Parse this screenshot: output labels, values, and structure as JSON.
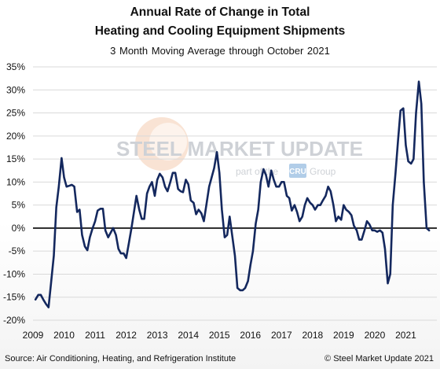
{
  "header": {
    "title_line1": "Annual Rate of Change in Total",
    "title_line2": "Heating and Cooling Equipment Shipments",
    "subtitle": "3 Month Moving Average through October 2021"
  },
  "watermark": {
    "brand_text": "STEEL MARKET UPDATE",
    "tagline_prefix": "part of the",
    "tagline_badge": "CRU",
    "tagline_suffix": "Group"
  },
  "footer": {
    "source": "Source: Air Conditioning, Heating, and Refrigeration Institute",
    "copyright": "© Steel Market Update 2021"
  },
  "colors": {
    "line": "#14285e",
    "zero_line": "#000000",
    "watermark_grey": "#c9cdd2",
    "watermark_orange": "#f2c7a8",
    "watermark_badge": "#a9c8e6"
  },
  "chart_data": {
    "type": "line",
    "title": "Annual Rate of Change in Total Heating and Cooling Equipment Shipments",
    "subtitle": "3 Month Moving Average through October 2021",
    "xlabel": "",
    "ylabel": "",
    "xlim": [
      2009.0,
      2022.0
    ],
    "ylim": [
      -20,
      35
    ],
    "y_ticks": [
      -20,
      -15,
      -10,
      -5,
      0,
      5,
      10,
      15,
      20,
      25,
      30,
      35
    ],
    "y_tick_labels": [
      "-20%",
      "-15%",
      "-10%",
      "-5%",
      "0%",
      "5%",
      "10%",
      "15%",
      "20%",
      "25%",
      "30%",
      "35%"
    ],
    "x_ticks": [
      2009,
      2010,
      2011,
      2012,
      2013,
      2014,
      2015,
      2016,
      2017,
      2018,
      2019,
      2020,
      2021
    ],
    "x_tick_labels": [
      "2009",
      "2010",
      "2011",
      "2012",
      "2013",
      "2014",
      "2015",
      "2016",
      "2017",
      "2018",
      "2019",
      "2020",
      "2021"
    ],
    "grid": "horizontal",
    "legend": "none",
    "series": [
      {
        "name": "",
        "x": [
          2009.08,
          2009.17,
          2009.25,
          2009.33,
          2009.42,
          2009.5,
          2009.58,
          2009.67,
          2009.75,
          2009.83,
          2009.92,
          2010.0,
          2010.08,
          2010.17,
          2010.25,
          2010.33,
          2010.42,
          2010.5,
          2010.58,
          2010.67,
          2010.75,
          2010.83,
          2010.92,
          2011.0,
          2011.08,
          2011.17,
          2011.25,
          2011.33,
          2011.42,
          2011.5,
          2011.58,
          2011.67,
          2011.75,
          2011.83,
          2011.92,
          2012.0,
          2012.08,
          2012.17,
          2012.25,
          2012.33,
          2012.42,
          2012.5,
          2012.58,
          2012.67,
          2012.75,
          2012.83,
          2012.92,
          2013.0,
          2013.08,
          2013.17,
          2013.25,
          2013.33,
          2013.42,
          2013.5,
          2013.58,
          2013.67,
          2013.75,
          2013.83,
          2013.92,
          2014.0,
          2014.08,
          2014.17,
          2014.25,
          2014.33,
          2014.42,
          2014.5,
          2014.58,
          2014.67,
          2014.75,
          2014.83,
          2014.92,
          2015.0,
          2015.08,
          2015.17,
          2015.25,
          2015.33,
          2015.42,
          2015.5,
          2015.58,
          2015.67,
          2015.75,
          2015.83,
          2015.92,
          2016.0,
          2016.08,
          2016.17,
          2016.25,
          2016.33,
          2016.42,
          2016.5,
          2016.58,
          2016.67,
          2016.75,
          2016.83,
          2016.92,
          2017.0,
          2017.08,
          2017.17,
          2017.25,
          2017.33,
          2017.42,
          2017.5,
          2017.58,
          2017.67,
          2017.75,
          2017.83,
          2017.92,
          2018.0,
          2018.08,
          2018.17,
          2018.25,
          2018.33,
          2018.42,
          2018.5,
          2018.58,
          2018.67,
          2018.75,
          2018.83,
          2018.92,
          2019.0,
          2019.08,
          2019.17,
          2019.25,
          2019.33,
          2019.42,
          2019.5,
          2019.58,
          2019.67,
          2019.75,
          2019.83,
          2019.92,
          2020.0,
          2020.08,
          2020.17,
          2020.25,
          2020.33,
          2020.42,
          2020.5,
          2020.58,
          2020.67,
          2020.75,
          2020.83,
          2020.92,
          2021.0,
          2021.08,
          2021.17,
          2021.25,
          2021.33,
          2021.42,
          2021.5,
          2021.58,
          2021.67,
          2021.75
        ],
        "values": [
          -15.5,
          -14.5,
          -14.5,
          -15.5,
          -16.5,
          -17.2,
          -12.0,
          -6.0,
          4.5,
          9.0,
          15.2,
          11.0,
          9.0,
          9.2,
          9.4,
          9.0,
          3.5,
          4.0,
          -1.5,
          -4.0,
          -4.8,
          -2.0,
          0.0,
          1.5,
          3.8,
          4.2,
          4.2,
          -0.5,
          -2.0,
          -1.0,
          0.0,
          -1.5,
          -4.5,
          -5.5,
          -5.5,
          -6.5,
          -3.5,
          0.0,
          3.5,
          7.0,
          4.0,
          2.0,
          2.0,
          7.5,
          9.0,
          10.0,
          7.0,
          10.5,
          11.8,
          11.0,
          9.0,
          8.0,
          10.0,
          12.0,
          12.0,
          8.5,
          8.0,
          7.8,
          10.5,
          9.5,
          6.0,
          5.5,
          3.0,
          4.0,
          3.2,
          1.5,
          5.0,
          9.0,
          11.0,
          13.0,
          16.5,
          12.0,
          4.0,
          -2.0,
          -1.5,
          2.5,
          -2.0,
          -6.0,
          -13.0,
          -13.5,
          -13.5,
          -13.0,
          -11.5,
          -8.0,
          -5.0,
          1.0,
          4.0,
          10.0,
          12.8,
          11.5,
          9.0,
          12.5,
          10.5,
          9.0,
          9.0,
          10.0,
          10.0,
          7.0,
          6.5,
          3.8,
          5.0,
          3.5,
          1.5,
          2.5,
          5.0,
          6.5,
          5.5,
          5.0,
          4.0,
          5.0,
          5.0,
          6.0,
          7.0,
          9.0,
          8.0,
          5.0,
          1.5,
          2.5,
          1.8,
          5.0,
          4.0,
          3.5,
          2.8,
          0.5,
          -0.5,
          -2.5,
          -2.5,
          -0.5,
          1.5,
          0.8,
          -0.5,
          -0.5,
          -0.8,
          -0.5,
          -1.0,
          -4.5,
          -12.0,
          -10.0,
          5.0,
          12.0,
          19.0,
          25.5,
          26.0,
          18.0,
          14.5,
          14.0,
          15.0,
          25.0,
          31.8,
          27.0,
          10.0,
          0.0,
          -0.5
        ]
      }
    ]
  }
}
